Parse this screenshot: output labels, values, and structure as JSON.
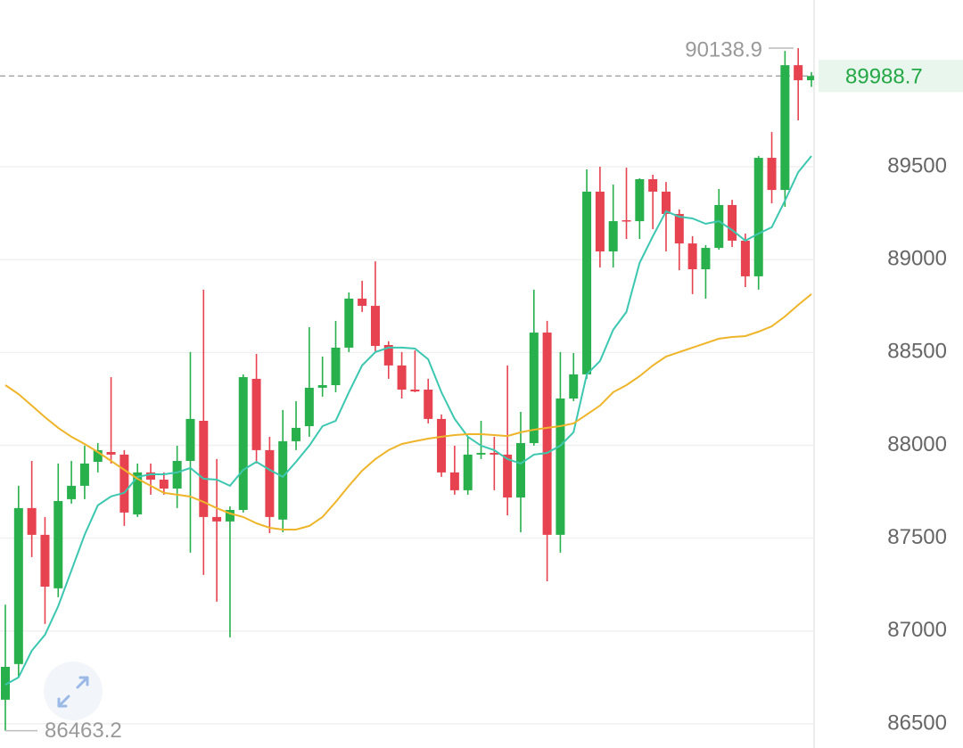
{
  "chart_data": {
    "type": "candlestick",
    "open": [
      86630,
      86822,
      87662,
      87518,
      87230,
      87710,
      87782,
      87911,
      87964,
      87950,
      87628,
      87854,
      87815,
      87767,
      87916,
      88132,
      87614,
      87590,
      87652,
      88358,
      87974,
      87600,
      88022,
      88103,
      88310,
      88324,
      88526,
      88790,
      88751,
      88540,
      88430,
      88300,
      88300,
      88142,
      87854,
      87758,
      87950,
      87959,
      87950,
      87719,
      88012,
      88607,
      87518,
      88252,
      88382,
      89366,
      89044,
      89212,
      89207,
      89433,
      89366,
      89246,
      89087,
      88948,
      89063,
      89294,
      89102,
      88910,
      89548,
      89375,
      90047,
      89966
    ],
    "high": [
      87142,
      87782,
      87916,
      87614,
      87902,
      87916,
      87998,
      88012,
      88367,
      87974,
      87902,
      87902,
      87854,
      87998,
      88502,
      88838,
      87926,
      87671,
      88382,
      88492,
      88046,
      88190,
      88238,
      88636,
      88478,
      88670,
      88823,
      88886,
      88991,
      88560,
      88502,
      88511,
      88358,
      88166,
      87998,
      88046,
      88132,
      88046,
      88430,
      88180,
      88838,
      88670,
      88502,
      88497,
      89486,
      89500,
      89404,
      89495,
      89438,
      89457,
      89418,
      89270,
      89126,
      89078,
      89380,
      89322,
      89140,
      89558,
      89687,
      90124,
      90138.9,
      90010
    ],
    "low": [
      86463.2,
      86750,
      87398,
      87038,
      87182,
      87686,
      87710,
      87854,
      87902,
      87566,
      87614,
      87734,
      87734,
      87662,
      87422,
      87302,
      87158,
      86966,
      87638,
      87902,
      87527,
      87532,
      87974,
      88046,
      88262,
      88286,
      88502,
      88718,
      88502,
      88358,
      88252,
      88286,
      88118,
      87830,
      87734,
      87734,
      87926,
      87758,
      87623,
      87532,
      87998,
      87268,
      87422,
      88238,
      88358,
      88958,
      88958,
      89111,
      89111,
      89164,
      89044,
      88943,
      88814,
      88790,
      89054,
      89068,
      88852,
      88838,
      89303,
      89284,
      89750,
      89930
    ],
    "close": [
      86807,
      87662,
      87518,
      87239,
      87700,
      87782,
      87902,
      87974,
      87950,
      87638,
      87854,
      87815,
      87767,
      87916,
      88142,
      87614,
      87590,
      87652,
      88367,
      87974,
      87614,
      88022,
      88094,
      88310,
      88324,
      88526,
      88790,
      88751,
      88535,
      88430,
      88300,
      88290,
      88142,
      87854,
      87758,
      87950,
      87959,
      87950,
      87719,
      88012,
      88607,
      87518,
      88252,
      88382,
      89366,
      89044,
      89207,
      89207,
      89433,
      89366,
      89246,
      89087,
      88948,
      89063,
      89294,
      89102,
      88910,
      89548,
      89375,
      90047,
      89966,
      89988.7
    ],
    "up_color": "#27b04b",
    "down_color": "#e6424f",
    "moving_averages": [
      {
        "color": "#3cc7b0",
        "values": [
          86711,
          86750,
          86894,
          86980,
          87134,
          87326,
          87518,
          87677,
          87725,
          87744,
          87830,
          87844,
          87844,
          87854,
          87878,
          87820,
          87815,
          87782,
          87868,
          87911,
          87868,
          87830,
          87911,
          87998,
          88103,
          88132,
          88286,
          88430,
          88502,
          88526,
          88526,
          88521,
          88463,
          88286,
          88142,
          88046,
          87998,
          87974,
          87926,
          87902,
          87950,
          87959,
          87998,
          88070,
          88382,
          88454,
          88622,
          88718,
          88982,
          89126,
          89260,
          89231,
          89222,
          89193,
          89207,
          89159,
          89102,
          89140,
          89174,
          89318,
          89471,
          89558
        ]
      },
      {
        "color": "#efb52a",
        "values": [
          88324,
          88276,
          88214,
          88151,
          88094,
          88046,
          88007,
          87964,
          87916,
          87868,
          87820,
          87782,
          87744,
          87734,
          87724,
          87695,
          87662,
          87633,
          87614,
          87580,
          87556,
          87546,
          87546,
          87566,
          87614,
          87695,
          87782,
          87863,
          87926,
          87974,
          88007,
          88022,
          88036,
          88046,
          88055,
          88060,
          88060,
          88055,
          88050,
          88070,
          88084,
          88094,
          88103,
          88118,
          88166,
          88214,
          88286,
          88324,
          88372,
          88430,
          88478,
          88502,
          88526,
          88550,
          88574,
          88583,
          88588,
          88612,
          88641,
          88694,
          88756,
          88814
        ]
      }
    ],
    "ylim": [
      86370,
      90398
    ],
    "yticks": [
      86500,
      87000,
      87500,
      88000,
      88500,
      89000,
      89500
    ],
    "grid": true,
    "max_label": 90138.9,
    "min_label": 86463.2,
    "last_price": 89988.7
  }
}
